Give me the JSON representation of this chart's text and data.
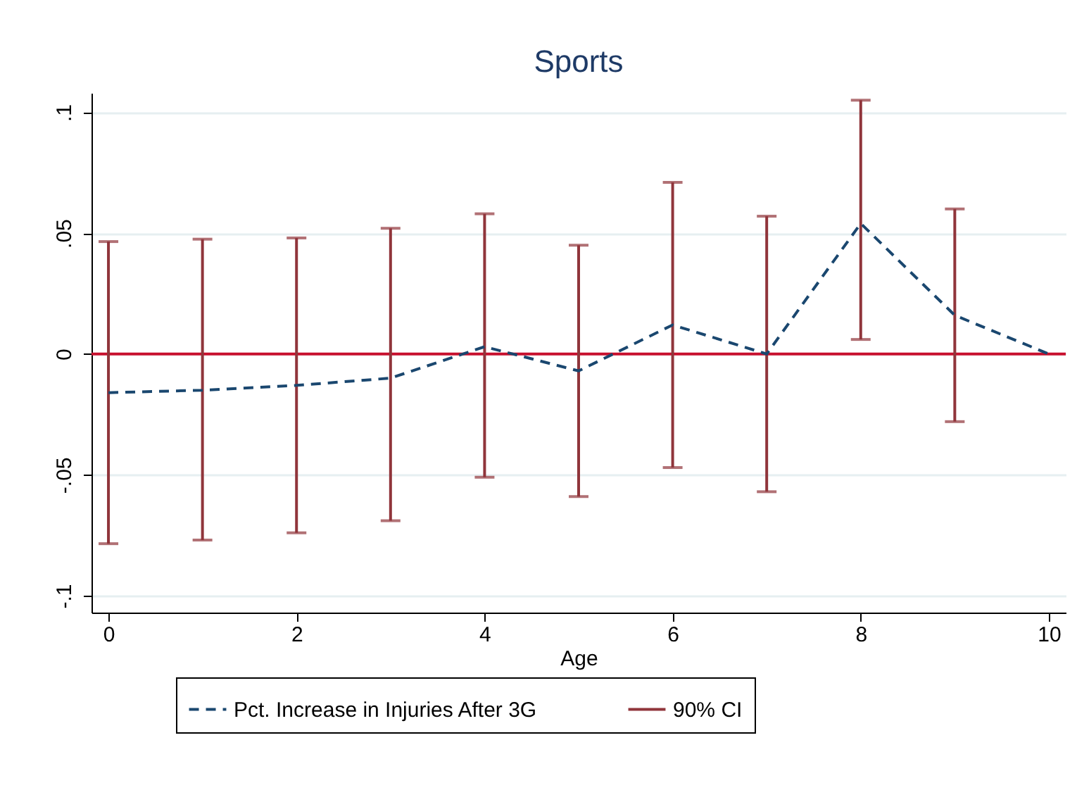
{
  "chart_data": {
    "type": "line",
    "title": "Sports",
    "xlabel": "Age",
    "x": [
      0,
      1,
      2,
      3,
      4,
      5,
      6,
      7,
      8,
      9,
      10
    ],
    "series": [
      {
        "name": "Pct. Increase in Injuries After 3G",
        "color": "#1a476f",
        "values": [
          -0.016,
          -0.015,
          -0.013,
          -0.01,
          0.003,
          -0.007,
          0.012,
          0,
          0.054,
          0.016,
          0
        ],
        "errors": [
          [
            -0.0785,
            0.0465
          ],
          [
            -0.077,
            0.0475
          ],
          [
            -0.074,
            0.048
          ],
          [
            -0.069,
            0.052
          ],
          [
            -0.051,
            0.058
          ],
          [
            -0.059,
            0.045
          ],
          [
            -0.047,
            0.071
          ],
          [
            -0.057,
            0.057
          ],
          [
            0.006,
            0.105
          ],
          [
            -0.028,
            0.06
          ],
          null
        ]
      }
    ],
    "annotations": [
      "90% CI"
    ],
    "xlim": [
      -0.18,
      10.18
    ],
    "xticks": [
      0,
      2,
      4,
      6,
      8,
      10
    ],
    "ylim": [
      -0.107,
      0.108
    ],
    "yticks": [
      {
        "value": -0.1,
        "label": "-.1"
      },
      {
        "value": -0.05,
        "label": "-.05"
      },
      {
        "value": 0,
        "label": "0"
      },
      {
        "value": 0.05,
        "label": ".05"
      },
      {
        "value": 0.1,
        "label": ".1"
      }
    ],
    "ref_lines": [
      {
        "axis": "y",
        "value": 0,
        "color": "#c8102e"
      }
    ],
    "grid": "y",
    "legend": "bottom",
    "line_style": "dashed",
    "marker": "none"
  }
}
